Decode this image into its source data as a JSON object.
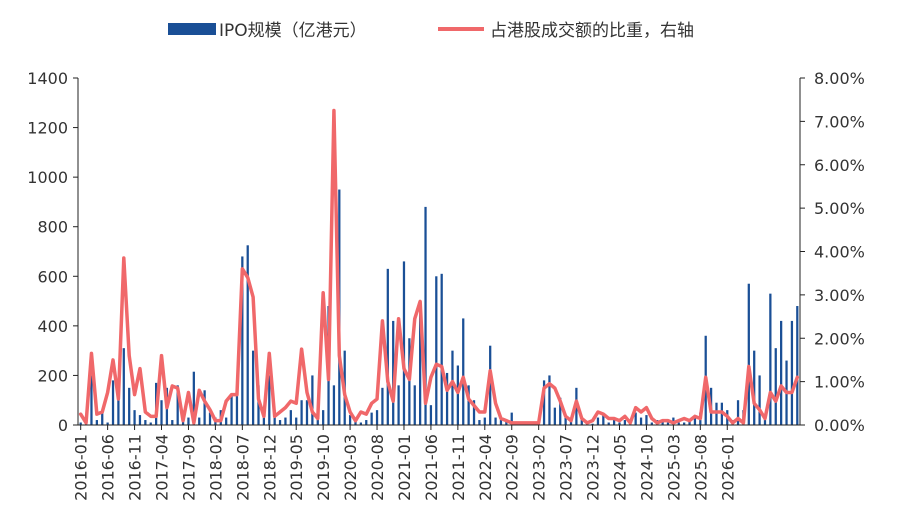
{
  "chart_data": {
    "type": "bar+line",
    "title": "",
    "legend": {
      "placement": "top-center",
      "bar_label": "IPO规模（亿港元）",
      "line_label": "占港股成交额的比重，右轴"
    },
    "colors": {
      "bar": "#1a4f96",
      "line": "#f0686a",
      "axis": "#222222",
      "text": "#333333"
    },
    "left_axis": {
      "min": 0,
      "max": 1400,
      "ticks": [
        "0",
        "200",
        "400",
        "600",
        "800",
        "1000",
        "1200",
        "1400"
      ]
    },
    "right_axis": {
      "min": 0,
      "max": 8,
      "ticks": [
        "0.00%",
        "1.00%",
        "2.00%",
        "3.00%",
        "4.00%",
        "5.00%",
        "6.00%",
        "7.00%",
        "8.00%"
      ]
    },
    "x_tick_labels": [
      "2016-01",
      "2016-06",
      "2016-11",
      "2017-04",
      "2017-09",
      "2018-02",
      "2018-07",
      "2018-12",
      "2019-05",
      "2019-10",
      "2020-03",
      "2020-08",
      "2021-01",
      "2021-06",
      "2021-11",
      "2022-04",
      "2022-09",
      "2023-02",
      "2023-07",
      "2023-12",
      "2024-05",
      "2024-10",
      "2025-03",
      "2025-08",
      "2026-01"
    ],
    "series": [
      {
        "name": "IPO规模（亿港元）",
        "axis": "left",
        "values": [
          10,
          5,
          200,
          20,
          60,
          10,
          180,
          150,
          310,
          150,
          60,
          40,
          20,
          10,
          170,
          100,
          150,
          20,
          160,
          20,
          30,
          215,
          30,
          140,
          50,
          30,
          60,
          30,
          120,
          120,
          680,
          725,
          300,
          160,
          30,
          200,
          60,
          20,
          30,
          60,
          30,
          100,
          100,
          200,
          40,
          60,
          480,
          160,
          950,
          300,
          40,
          30,
          10,
          20,
          50,
          60,
          150,
          630,
          420,
          160,
          660,
          350,
          160,
          460,
          880,
          80,
          600,
          610,
          210,
          300,
          240,
          430,
          160,
          100,
          20,
          30,
          320,
          30,
          20,
          20,
          50,
          10,
          10,
          10,
          10,
          10,
          180,
          200,
          70,
          110,
          30,
          20,
          150,
          20,
          10,
          5,
          30,
          40,
          10,
          20,
          10,
          20,
          10,
          50,
          30,
          40,
          10,
          20,
          20,
          10,
          30,
          10,
          10,
          20,
          30,
          50,
          360,
          150,
          90,
          90,
          60,
          20,
          100,
          60,
          570,
          300,
          200,
          30,
          530,
          310,
          420,
          260,
          420,
          480
        ]
      },
      {
        "name": "占港股成交额的比重，右轴",
        "axis": "right",
        "values": [
          0.25,
          0.05,
          1.65,
          0.25,
          0.3,
          0.75,
          1.5,
          0.6,
          3.85,
          1.6,
          0.7,
          1.3,
          0.3,
          0.2,
          0.2,
          1.6,
          0.4,
          0.9,
          0.85,
          0.1,
          0.75,
          0.05,
          0.8,
          0.55,
          0.35,
          0.1,
          0.1,
          0.55,
          0.7,
          0.7,
          3.6,
          3.4,
          2.95,
          0.6,
          0.2,
          1.65,
          0.2,
          0.3,
          0.4,
          0.55,
          0.5,
          1.75,
          0.75,
          0.3,
          0.15,
          3.05,
          1.05,
          7.25,
          1.6,
          0.7,
          0.3,
          0.1,
          0.3,
          0.25,
          0.5,
          0.6,
          2.4,
          1.0,
          0.55,
          2.45,
          1.3,
          1.05,
          2.45,
          2.85,
          0.5,
          1.1,
          1.4,
          1.35,
          0.8,
          1.0,
          0.75,
          1.1,
          0.6,
          0.45,
          0.3,
          0.3,
          1.25,
          0.5,
          0.15,
          0.1,
          0.05,
          0.05,
          0.05,
          0.05,
          0.05,
          0.05,
          0.85,
          0.95,
          0.85,
          0.55,
          0.2,
          0.1,
          0.55,
          0.15,
          0.05,
          0.1,
          0.3,
          0.25,
          0.15,
          0.15,
          0.1,
          0.2,
          0.05,
          0.4,
          0.3,
          0.4,
          0.15,
          0.05,
          0.1,
          0.1,
          0.05,
          0.1,
          0.15,
          0.1,
          0.2,
          0.15,
          1.1,
          0.3,
          0.3,
          0.3,
          0.2,
          0.05,
          0.15,
          0.05,
          1.35,
          0.5,
          0.35,
          0.15,
          0.75,
          0.55,
          0.9,
          0.75,
          0.75,
          1.1
        ]
      }
    ]
  }
}
